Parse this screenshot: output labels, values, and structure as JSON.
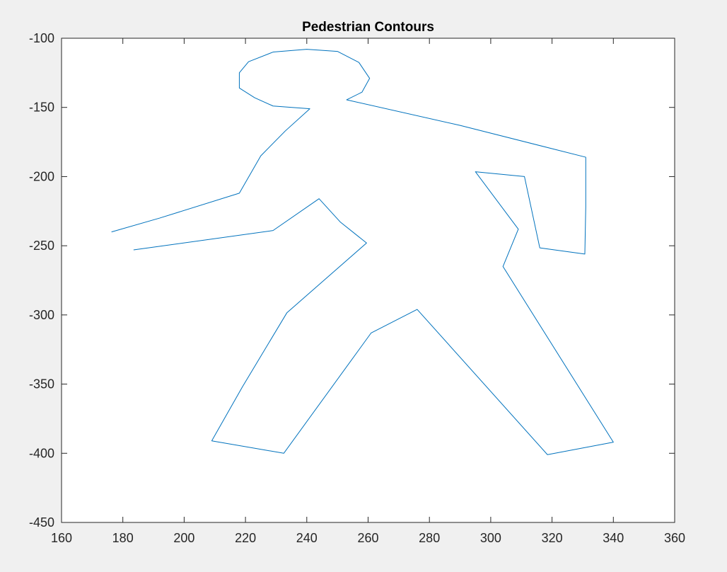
{
  "chart_data": {
    "type": "line",
    "title": "Pedestrian Contours",
    "xlabel": "",
    "ylabel": "",
    "xlim": [
      160,
      360
    ],
    "ylim": [
      -450,
      -100
    ],
    "xticks": [
      160,
      180,
      200,
      220,
      240,
      260,
      280,
      300,
      320,
      340,
      360
    ],
    "xtick_labels": [
      "160",
      "180",
      "200",
      "220",
      "240",
      "260",
      "280",
      "300",
      "320",
      "340",
      "360"
    ],
    "yticks": [
      -100,
      -150,
      -200,
      -250,
      -300,
      -350,
      -400,
      -450
    ],
    "ytick_labels": [
      "-100",
      "-150",
      "-200",
      "-250",
      "-300",
      "-350",
      "-400",
      "-450"
    ],
    "grid": false,
    "legend": "none",
    "line_color": "#0072BD",
    "series": [
      {
        "x": [
          176.3,
          192,
          218,
          225,
          233,
          241,
          229,
          223,
          218,
          218,
          221,
          229,
          240,
          250,
          257,
          260.5,
          258,
          253,
          290,
          331,
          331,
          330.7,
          316,
          311,
          295,
          309,
          304,
          340,
          318.5,
          276,
          261,
          232.5,
          209,
          219,
          233.5,
          259.5,
          251,
          244,
          229,
          183.5
        ],
        "y": [
          -240,
          -230,
          -212,
          -185,
          -167,
          -151,
          -149,
          -143,
          -136,
          -125,
          -117,
          -110,
          -108,
          -109.5,
          -117.5,
          -129,
          -139,
          -144.5,
          -163,
          -186,
          -222,
          -256,
          -251.5,
          -200,
          -196.5,
          -238,
          -265,
          -392,
          -401,
          -296,
          -313,
          -400,
          -391,
          -352,
          -298.5,
          -248,
          -233,
          -216,
          -239,
          -253
        ]
      }
    ]
  }
}
